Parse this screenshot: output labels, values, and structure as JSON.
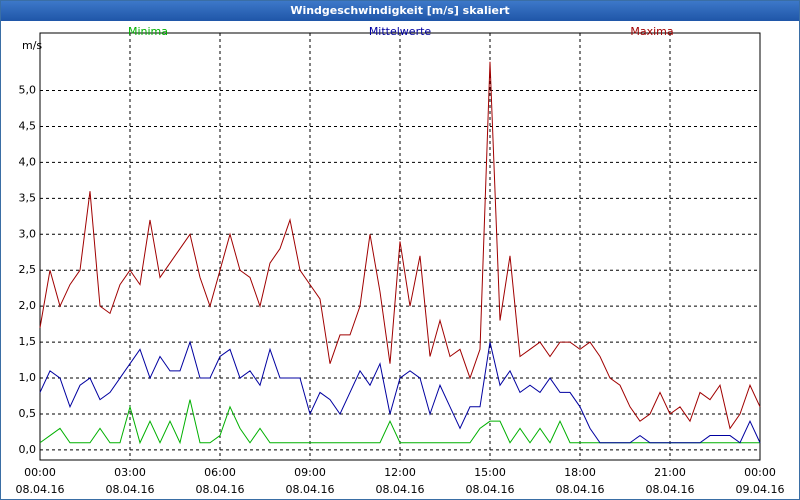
{
  "chart_data": {
    "type": "line",
    "title": "Windgeschwindigkeit [m/s] skaliert",
    "y_label": "m/s",
    "x": [
      0,
      20,
      40,
      60,
      80,
      100,
      120,
      140,
      160,
      180,
      200,
      220,
      240,
      260,
      280,
      300,
      320,
      340,
      360,
      380,
      400,
      420,
      440,
      460,
      480,
      500,
      520,
      540,
      560,
      580,
      600,
      620,
      640,
      660,
      680,
      700,
      720,
      740,
      760,
      780,
      800,
      820,
      840,
      860,
      880,
      900,
      920,
      940,
      960,
      980,
      1000,
      1020,
      1040,
      1060,
      1080,
      1100,
      1120,
      1140,
      1160,
      1180,
      1200,
      1220,
      1240,
      1260,
      1280,
      1300,
      1320,
      1340,
      1360,
      1380,
      1400,
      1420,
      1440
    ],
    "xlim": [
      0,
      1440
    ],
    "xticks": [
      {
        "value": 0,
        "label": "00:00",
        "date": "08.04.16"
      },
      {
        "value": 180,
        "label": "03:00",
        "date": "08.04.16"
      },
      {
        "value": 360,
        "label": "06:00",
        "date": "08.04.16"
      },
      {
        "value": 540,
        "label": "09:00",
        "date": "08.04.16"
      },
      {
        "value": 720,
        "label": "12:00",
        "date": "08.04.16"
      },
      {
        "value": 900,
        "label": "15:00",
        "date": "08.04.16"
      },
      {
        "value": 1080,
        "label": "18:00",
        "date": "08.04.16"
      },
      {
        "value": 1260,
        "label": "21:00",
        "date": "08.04.16"
      },
      {
        "value": 1440,
        "label": "00:00",
        "date": "09.04.16"
      }
    ],
    "ylim": [
      -0.14,
      5.8
    ],
    "yticks": [
      {
        "value": 0,
        "label": "0,0"
      },
      {
        "value": 0.5,
        "label": "0,5"
      },
      {
        "value": 1,
        "label": "1,0"
      },
      {
        "value": 1.5,
        "label": "1,5"
      },
      {
        "value": 2,
        "label": "2,0"
      },
      {
        "value": 2.5,
        "label": "2,5"
      },
      {
        "value": 3,
        "label": "3,0"
      },
      {
        "value": 3.5,
        "label": "3,5"
      },
      {
        "value": 4,
        "label": "4,0"
      },
      {
        "value": 4.5,
        "label": "4,5"
      },
      {
        "value": 5,
        "label": "5,0"
      }
    ],
    "grid": true,
    "series": [
      {
        "name": "Minima",
        "color": "#00b000",
        "values": [
          0.1,
          0.2,
          0.3,
          0.1,
          0.1,
          0.1,
          0.3,
          0.1,
          0.1,
          0.6,
          0.1,
          0.4,
          0.1,
          0.4,
          0.1,
          0.7,
          0.1,
          0.1,
          0.2,
          0.6,
          0.3,
          0.1,
          0.3,
          0.1,
          0.1,
          0.1,
          0.1,
          0.1,
          0.1,
          0.1,
          0.1,
          0.1,
          0.1,
          0.1,
          0.1,
          0.4,
          0.1,
          0.1,
          0.1,
          0.1,
          0.1,
          0.1,
          0.1,
          0.1,
          0.3,
          0.4,
          0.4,
          0.1,
          0.3,
          0.1,
          0.3,
          0.1,
          0.4,
          0.1,
          0.1,
          0.1,
          0.1,
          0.1,
          0.1,
          0.1,
          0.1,
          0.1,
          0.1,
          0.1,
          0.1,
          0.1,
          0.1,
          0.1,
          0.1,
          0.1,
          0.1,
          0.1,
          0.1
        ]
      },
      {
        "name": "Mittelwerte",
        "color": "#0000a0",
        "values": [
          0.8,
          1.1,
          1.0,
          0.6,
          0.9,
          1.0,
          0.7,
          0.8,
          1.0,
          1.2,
          1.4,
          1.0,
          1.3,
          1.1,
          1.1,
          1.5,
          1.0,
          1.0,
          1.3,
          1.4,
          1.0,
          1.1,
          0.9,
          1.4,
          1.0,
          1.0,
          1.0,
          0.5,
          0.8,
          0.7,
          0.5,
          0.8,
          1.1,
          0.9,
          1.2,
          0.5,
          1.0,
          1.1,
          1.0,
          0.5,
          0.9,
          0.6,
          0.3,
          0.6,
          0.6,
          1.5,
          0.9,
          1.1,
          0.8,
          0.9,
          0.8,
          1.0,
          0.8,
          0.8,
          0.6,
          0.3,
          0.1,
          0.1,
          0.1,
          0.1,
          0.2,
          0.1,
          0.1,
          0.1,
          0.1,
          0.1,
          0.1,
          0.2,
          0.2,
          0.2,
          0.1,
          0.4,
          0.1
        ]
      },
      {
        "name": "Maxima",
        "color": "#a00000",
        "values": [
          1.7,
          2.5,
          2.0,
          2.3,
          2.5,
          3.6,
          2.0,
          1.9,
          2.3,
          2.5,
          2.3,
          3.2,
          2.4,
          2.6,
          2.8,
          3.0,
          2.4,
          2.0,
          2.5,
          3.0,
          2.5,
          2.4,
          2.0,
          2.6,
          2.8,
          3.2,
          2.5,
          2.3,
          2.1,
          1.2,
          1.6,
          1.6,
          2.0,
          3.0,
          2.2,
          1.2,
          2.9,
          2.0,
          2.7,
          1.3,
          1.8,
          1.3,
          1.4,
          1.0,
          1.4,
          5.4,
          1.8,
          2.7,
          1.3,
          1.4,
          1.5,
          1.3,
          1.5,
          1.5,
          1.4,
          1.5,
          1.3,
          1.0,
          0.9,
          0.6,
          0.4,
          0.5,
          0.8,
          0.5,
          0.6,
          0.4,
          0.8,
          0.7,
          0.9,
          0.3,
          0.5,
          0.9,
          0.6
        ]
      }
    ]
  }
}
